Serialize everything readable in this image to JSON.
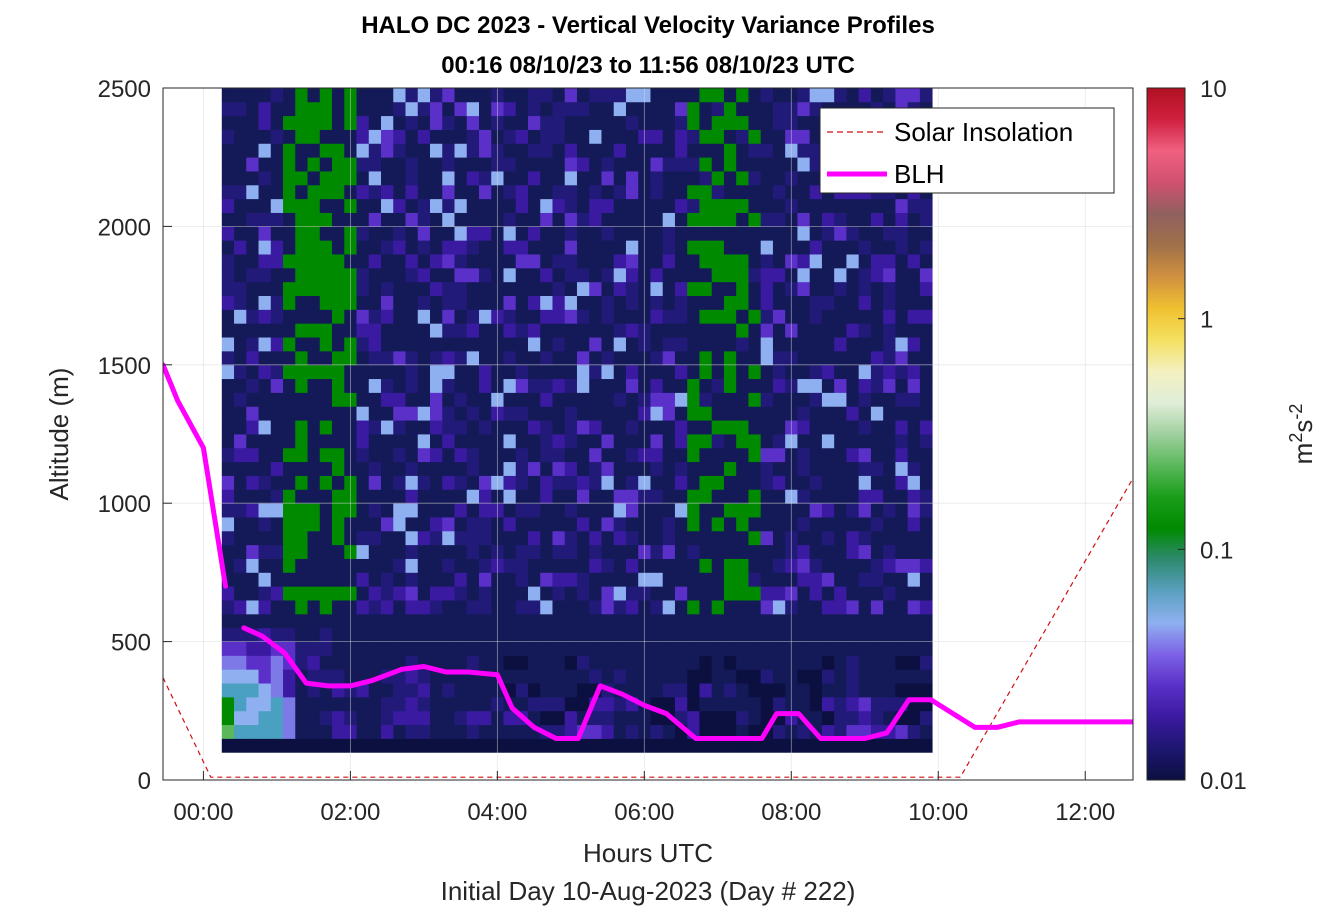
{
  "chart_data": {
    "type": "heatmap",
    "title": "HALO DC 2023 - Vertical Velocity Variance Profiles",
    "subtitle": "00:16 08/10/23 to 11:56 08/10/23  UTC",
    "xlabel": "Hours UTC",
    "x_sublabel": "Initial Day 10-Aug-2023 (Day # 222)",
    "ylabel": "Altitude (m)",
    "xlim_hours": [
      -0.55,
      12.65
    ],
    "ylim": [
      0,
      2500
    ],
    "x_ticks": [
      {
        "value": 0,
        "label": "00:00"
      },
      {
        "value": 2,
        "label": "02:00"
      },
      {
        "value": 4,
        "label": "04:00"
      },
      {
        "value": 6,
        "label": "06:00"
      },
      {
        "value": 8,
        "label": "08:00"
      },
      {
        "value": 10,
        "label": "10:00"
      },
      {
        "value": 12,
        "label": "12:00"
      }
    ],
    "y_ticks": [
      {
        "value": 0,
        "label": "0"
      },
      {
        "value": 500,
        "label": "500"
      },
      {
        "value": 1000,
        "label": "1000"
      },
      {
        "value": 1500,
        "label": "1500"
      },
      {
        "value": 2000,
        "label": "2000"
      },
      {
        "value": 2500,
        "label": "2500"
      }
    ],
    "grid": true,
    "colorbar": {
      "label_base": "m",
      "label_exp1": "2",
      "label_mid": "s",
      "label_exp2": "-2",
      "scale": "log",
      "range": [
        0.01,
        10
      ],
      "ticks": [
        {
          "value": 0.01,
          "label": "0.01"
        },
        {
          "value": 0.1,
          "label": "0.1"
        },
        {
          "value": 1,
          "label": "1"
        },
        {
          "value": 10,
          "label": "10"
        }
      ],
      "colors": [
        "#0b1040",
        "#1e1670",
        "#3a1aa0",
        "#5a30c8",
        "#7d62e6",
        "#8fb0f0",
        "#5aa0c0",
        "#2e8a70",
        "#008a00",
        "#1a9e1a",
        "#5ab85a",
        "#a0d0a0",
        "#e0eed8",
        "#f4f0c0",
        "#f4e060",
        "#f0c030",
        "#d09040",
        "#a07048",
        "#906060",
        "#d05070",
        "#f06080",
        "#d02040",
        "#b01020"
      ]
    },
    "heatmap": {
      "x_start_hours": 0.25,
      "col_width_hours": 0.16667,
      "y_start": 100,
      "row_height": 50,
      "rows_bottom_to_top": [
        "00000000000000000000000000000000000000000000000000000000000000000000000000000000000000000000000000000",
        "jhhhhfbbbddbbdbccbbbcbbbbbccdeedbcbcbadaaabaacbcbdceeddecbcfcccbbbcbacdbecfcbbcdfbbbcbbbbcbaaebb",
        "igghhfbbcdcbbcdddbbcddbddbaadbccbbbaacdaaacbaadbbaccdcbaacbbcdbbbaabdbbbbcbbaaccccbbcccaabaabbbdb",
        "ihgghfbbbbbbbccdcbbbbbcbbcccaaddcdbaadabbbbbacbbadcdecccaadbbbccaaabcdbbbbbaaaabdaacbbbbbbbdbaadbb",
        "hhhgfdbcbdcdbbccdbcbbbbacabbbaacbbbbccadbcbaaabbabbcbbbaaabbcbbbbaacbbbbbbbbbbbbacbbbbcbbbbbcbbbb",
        "gggefdbcccbbbccdcbbbbbbbbbbbbbcbcbbbbbaabbaacbbaacbcbbbbbbbcbbbbbbbcbbbbbbabbbaabccbabbbbbbbbbbbb",
        "ffeefecdbbbbbbbcbbbbcbbaabbbacbbbbbbbbbababbbbbbbabcbbbaacbbabbbabacbbcbbbbaaabcdbbbabbbbbbbbbbbb",
        "eeddeecccbbbbbbbbbbbbbbbbbbbbbbbbbbbbbbbbbbbbbbbbbbbbbbbbbbbbbbbbbbbbbbbbbbbbbbbbbbbbbbbbbbbbbbbb",
        "cccdccbbcbbbbbbbbbbbbbbbbbbbbbbbbbbbbbbbbbbbbbbbbbbbbbbbbbbbbbbbbbbbbbbbbbbbbbbbbbbbbbbbbbbbbbbbb",
        "bbbbbbbbbbbbbbbbbbbbbbbbbbbbbbbbbbbbbbbbbbbbbbbbbbbbbbbbbbbbbbbbbbbbbbbbbbbbbbbbbbbbbbbbbbbbbbbbb"
      ]
    },
    "series": [
      {
        "name": "Solar Insolation",
        "style": "dashed",
        "color": "#d01010",
        "x_hours": [
          -0.55,
          0.1,
          10.3,
          12.65
        ],
        "y": [
          370,
          10,
          10,
          1090
        ]
      },
      {
        "name": "BLH",
        "style": "solid",
        "color": "#ff00ff",
        "segments": [
          {
            "x_hours": [
              -0.55,
              -0.35,
              0.0,
              0.3
            ],
            "y": [
              1500,
              1370,
              1200,
              700
            ]
          },
          {
            "x_hours": [
              0.55,
              0.8,
              1.1,
              1.4,
              1.7,
              2.0,
              2.3,
              2.7,
              3.0,
              3.3,
              3.6,
              4.0,
              4.2,
              4.5,
              4.8,
              5.1,
              5.4,
              5.7,
              6.0,
              6.3,
              6.7,
              7.0,
              7.3,
              7.6,
              7.8,
              8.1,
              8.4,
              8.7,
              9.0,
              9.3,
              9.6,
              9.9,
              10.2,
              10.5,
              10.8,
              11.1,
              11.4,
              11.7,
              12.0,
              12.3,
              12.65
            ],
            "y": [
              550,
              520,
              460,
              350,
              340,
              340,
              360,
              400,
              410,
              390,
              390,
              380,
              260,
              190,
              150,
              150,
              340,
              310,
              270,
              240,
              150,
              150,
              150,
              150,
              240,
              240,
              150,
              150,
              150,
              170,
              290,
              290,
              240,
              190,
              190,
              210,
              210,
              210,
              210,
              210,
              210
            ]
          }
        ]
      }
    ],
    "legend": {
      "position": "top-right",
      "entries": [
        "Solar Insolation",
        "BLH"
      ]
    }
  }
}
